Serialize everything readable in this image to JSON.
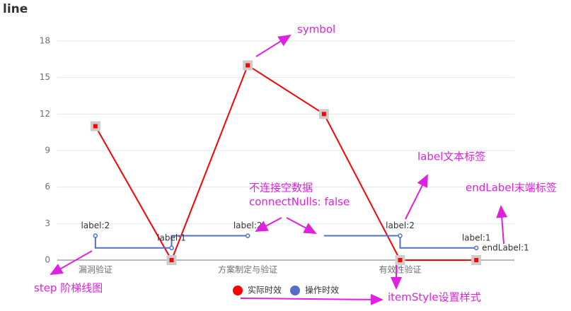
{
  "chart_data": {
    "type": "line",
    "title": "line",
    "categories": [
      "漏洞验证",
      null,
      "方案制定与验证",
      null,
      "有效性验证",
      null
    ],
    "series": [
      {
        "name": "实际时效",
        "color": "#ff0000",
        "values": [
          11,
          0,
          16,
          12,
          0,
          0
        ]
      },
      {
        "name": "操作时效",
        "color": "#5470c6",
        "step": "start",
        "values": [
          2,
          1,
          2,
          null,
          2,
          1
        ],
        "value_labels": [
          "label:2",
          "label:1",
          "label:2",
          null,
          "label:2",
          "label:1"
        ],
        "end_label": "endLabel:1"
      }
    ],
    "ylim": [
      0,
      18
    ],
    "yticks": [
      0,
      3,
      6,
      9,
      12,
      15,
      18
    ],
    "grid": true,
    "legend": "bottom",
    "annotations": [
      "symbol",
      "label文本标签",
      "endLabel末端标签",
      "不连接空数据",
      "connectNulls: false",
      "step 阶梯线图",
      "itemStyle设置样式"
    ]
  }
}
